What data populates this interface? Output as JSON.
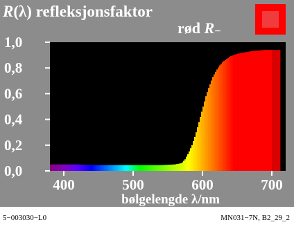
{
  "chart_data": {
    "type": "area",
    "title": "R(λ) refleksjonsfaktor",
    "title_prefix": "R",
    "title_lambda": "(λ)",
    "title_rest": " refleksjonsfaktor",
    "subtitle": "rød R−",
    "subtitle_text": "rød ",
    "subtitle_symbol": "R",
    "subtitle_sub": "−",
    "xlabel": "bølgelengde λ/nm",
    "xlim": [
      380,
      720
    ],
    "ylim": [
      0,
      1.0
    ],
    "xticks": [
      {
        "value": 400,
        "label": "400"
      },
      {
        "value": 500,
        "label": "500"
      },
      {
        "value": 600,
        "label": "600"
      },
      {
        "value": 700,
        "label": "700"
      }
    ],
    "yticks": [
      {
        "value": 0.0,
        "label": "0,0"
      },
      {
        "value": 0.2,
        "label": "0,2"
      },
      {
        "value": 0.4,
        "label": "0,4"
      },
      {
        "value": 0.6,
        "label": "0,6"
      },
      {
        "value": 0.8,
        "label": "0,8"
      },
      {
        "value": 1.0,
        "label": "1,0"
      }
    ],
    "grid": false,
    "plot_background": "#000000",
    "swatch_color": "#ff0000",
    "swatch_inner_color": "#f03c3c",
    "series": [
      {
        "x": [
          380,
          400,
          420,
          440,
          460,
          480,
          500,
          520,
          540,
          560,
          570,
          575,
          580,
          585,
          590,
          595,
          600,
          605,
          610,
          615,
          620,
          625,
          630,
          640,
          650,
          660,
          670,
          680,
          690,
          700,
          710,
          720
        ],
        "values": [
          0.05,
          0.05,
          0.05,
          0.045,
          0.045,
          0.045,
          0.045,
          0.045,
          0.045,
          0.05,
          0.06,
          0.09,
          0.14,
          0.2,
          0.28,
          0.38,
          0.48,
          0.58,
          0.66,
          0.73,
          0.78,
          0.82,
          0.85,
          0.89,
          0.91,
          0.92,
          0.93,
          0.935,
          0.94,
          0.94,
          0.94,
          0.94
        ]
      }
    ]
  },
  "footer": {
    "left": "5−003030−L0",
    "right": "MN031−7N, B2_29_2"
  }
}
